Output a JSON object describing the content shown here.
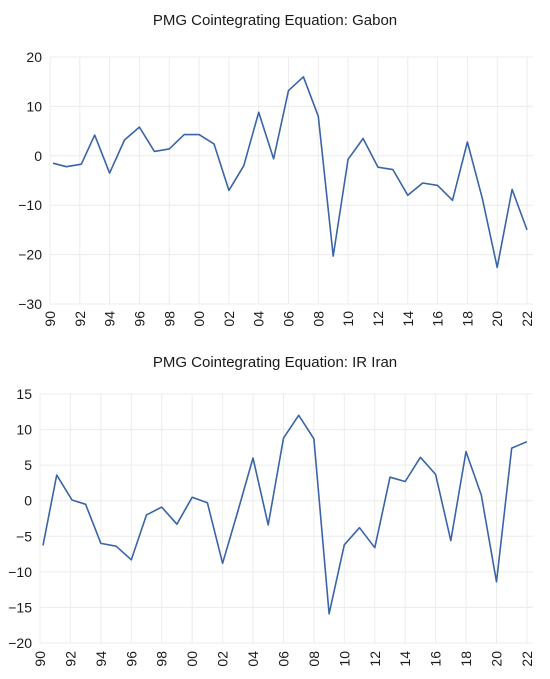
{
  "chart_data": [
    {
      "type": "line",
      "title": "PMG Cointegrating Equation: Gabon",
      "xlabel": "",
      "ylabel": "",
      "ylim": [
        -30,
        20
      ],
      "yticks": [
        20,
        10,
        0,
        -10,
        -20,
        -30
      ],
      "ytick_labels": [
        "20",
        "10",
        "0",
        "−10",
        "−20",
        "−30"
      ],
      "xtick_labels": [
        "90",
        "92",
        "94",
        "96",
        "98",
        "00",
        "02",
        "04",
        "06",
        "08",
        "10",
        "12",
        "14",
        "16",
        "18",
        "20",
        "22"
      ],
      "xtick_years": [
        1990,
        1992,
        1994,
        1996,
        1998,
        2000,
        2002,
        2004,
        2006,
        2008,
        2010,
        2012,
        2014,
        2016,
        2018,
        2020,
        2022
      ],
      "xlim": [
        1990,
        2022.4
      ],
      "grid": true,
      "series": [
        {
          "color": "#3a64a8",
          "x": [
            1990.2,
            1991.1,
            1992.1,
            1993.0,
            1994.0,
            1995.0,
            1996.0,
            1997.0,
            1998.0,
            1999.0,
            2000.0,
            2001.0,
            2002.0,
            2003.0,
            2004.0,
            2005.0,
            2006.0,
            2007.0,
            2008.0,
            2009.0,
            2010.0,
            2011.0,
            2012.0,
            2013.0,
            2014.0,
            2015.0,
            2016.0,
            2017.0,
            2018.0,
            2019.0,
            2020.0,
            2021.0,
            2022.0
          ],
          "values": [
            -1.5,
            -2.2,
            -1.7,
            4.2,
            -3.5,
            3.2,
            5.8,
            0.9,
            1.4,
            4.3,
            4.3,
            2.4,
            -7.0,
            -2.0,
            8.8,
            -0.6,
            13.2,
            16.0,
            8.0,
            -20.3,
            -0.7,
            3.5,
            -2.3,
            -2.8,
            -8.0,
            -5.5,
            -6.0,
            -9.0,
            2.8,
            -8.6,
            -22.6,
            -6.8,
            -15.0
          ]
        }
      ]
    },
    {
      "type": "line",
      "title": "PMG Cointegrating Equation: IR Iran",
      "xlabel": "",
      "ylabel": "",
      "ylim": [
        -20,
        15
      ],
      "yticks": [
        15,
        10,
        5,
        0,
        -5,
        -10,
        -15,
        -20
      ],
      "ytick_labels": [
        "15",
        "10",
        "5",
        "0",
        "−5",
        "−10",
        "−15",
        "−20"
      ],
      "xtick_labels": [
        "90",
        "92",
        "94",
        "96",
        "98",
        "00",
        "02",
        "04",
        "06",
        "08",
        "10",
        "12",
        "14",
        "16",
        "18",
        "20",
        "22"
      ],
      "xtick_years": [
        1990,
        1992,
        1994,
        1996,
        1998,
        2000,
        2002,
        2004,
        2006,
        2008,
        2010,
        2012,
        2014,
        2016,
        2018,
        2020,
        2022
      ],
      "xlim": [
        1990,
        2022.4
      ],
      "grid": true,
      "series": [
        {
          "color": "#3a64a8",
          "x": [
            1990.2,
            1991.1,
            1992.1,
            1993.0,
            1994.0,
            1995.0,
            1996.0,
            1997.0,
            1998.0,
            1999.0,
            2000.0,
            2001.0,
            2002.0,
            2003.0,
            2004.0,
            2005.0,
            2006.0,
            2007.0,
            2008.0,
            2009.0,
            2010.0,
            2011.0,
            2012.0,
            2013.0,
            2014.0,
            2015.0,
            2016.0,
            2017.0,
            2018.0,
            2019.0,
            2020.0,
            2021.0,
            2022.0
          ],
          "values": [
            -6.3,
            3.6,
            0.1,
            -0.5,
            -6.0,
            -6.4,
            -8.3,
            -2.0,
            -0.9,
            -3.3,
            0.5,
            -0.3,
            -8.8,
            -1.5,
            6.0,
            -3.4,
            8.8,
            12.0,
            8.7,
            -15.9,
            -6.2,
            -3.8,
            -6.6,
            3.3,
            2.7,
            6.1,
            3.7,
            -5.6,
            6.9,
            0.8,
            -11.4,
            7.4,
            8.3
          ]
        }
      ]
    }
  ]
}
